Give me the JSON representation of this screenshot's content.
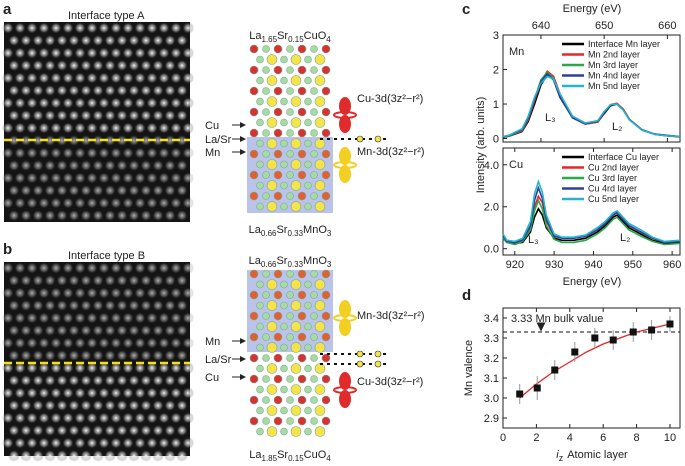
{
  "panels": [
    {
      "label": "a",
      "title": "Interface type A",
      "top_formula": [
        "La",
        "1.65",
        "Sr",
        "0.15",
        "CuO",
        "4"
      ],
      "bottom_formula": [
        "La",
        "0.66",
        "Sr",
        "0.33",
        "MnO",
        "3"
      ],
      "layer_labels": [
        "Cu",
        "La/Sr",
        "Mn"
      ],
      "orbitals": [
        "Cu-3d(3z²−r²)",
        "Mn-3d(3z²−r²)"
      ]
    },
    {
      "label": "b",
      "title": "Interface type B",
      "top_formula": [
        "La",
        "0.66",
        "Sr",
        "0.33",
        "MnO",
        "3"
      ],
      "bottom_formula": [
        "La",
        "1.85",
        "Sr",
        "0.15",
        "CuO",
        "4"
      ],
      "layer_labels": [
        "Mn",
        "La/Sr",
        "Cu"
      ],
      "orbitals": [
        "Mn-3d(3z²−r²)",
        "Cu-3d(3z²−r²)"
      ]
    }
  ],
  "chart_data": [
    {
      "type": "line",
      "panel_label": "c",
      "label": "Mn",
      "x_label": "Energy (eV)",
      "x_axis_position": "top",
      "y_label": "Intensity (arb. units)",
      "x": [
        634,
        635,
        637,
        638,
        639,
        640,
        641,
        642,
        643,
        645,
        647,
        649,
        650,
        651,
        652,
        653,
        654,
        656,
        658,
        660,
        662
      ],
      "series": [
        {
          "name": "Interface Mn layer",
          "color": "#000000",
          "values": [
            0.04,
            0.07,
            0.2,
            0.5,
            1.0,
            1.55,
            1.85,
            1.7,
            1.2,
            0.6,
            0.42,
            0.48,
            0.72,
            0.95,
            1.0,
            0.85,
            0.55,
            0.25,
            0.12,
            0.08,
            0.05
          ]
        },
        {
          "name": "Mn 2nd layer",
          "color": "#e8262a",
          "values": [
            0.05,
            0.08,
            0.22,
            0.55,
            1.1,
            1.65,
            1.95,
            1.8,
            1.3,
            0.62,
            0.42,
            0.48,
            0.75,
            0.98,
            1.02,
            0.86,
            0.56,
            0.25,
            0.12,
            0.08,
            0.06
          ]
        },
        {
          "name": "Mn 3rd layer",
          "color": "#2aa84a",
          "values": [
            0.05,
            0.08,
            0.24,
            0.58,
            1.15,
            1.7,
            1.92,
            1.75,
            1.25,
            0.6,
            0.43,
            0.5,
            0.76,
            0.98,
            1.0,
            0.84,
            0.55,
            0.25,
            0.13,
            0.09,
            0.06
          ]
        },
        {
          "name": "Mn 4nd layer",
          "color": "#2e3f9e",
          "values": [
            0.05,
            0.09,
            0.25,
            0.6,
            1.15,
            1.65,
            1.88,
            1.7,
            1.22,
            0.6,
            0.43,
            0.5,
            0.75,
            0.97,
            1.0,
            0.84,
            0.55,
            0.25,
            0.13,
            0.09,
            0.06
          ]
        },
        {
          "name": "Mn 5nd layer",
          "color": "#22b5cc",
          "values": [
            0.06,
            0.1,
            0.28,
            0.65,
            1.2,
            1.6,
            1.8,
            1.72,
            1.3,
            0.65,
            0.45,
            0.52,
            0.78,
            0.98,
            1.0,
            0.83,
            0.54,
            0.24,
            0.12,
            0.08,
            0.06
          ]
        }
      ],
      "annotations": [
        "L₃",
        "L₂"
      ],
      "xlim": [
        634,
        662
      ],
      "ylim": [
        -0.1,
        3.0
      ],
      "xticks": [
        640,
        650,
        660
      ],
      "yticks": [
        0,
        1,
        2,
        3
      ]
    },
    {
      "type": "line",
      "label": "Cu",
      "x_label": "Energy (eV)",
      "x_axis_position": "bottom",
      "x": [
        917,
        918,
        920,
        922,
        924,
        925,
        926,
        927,
        928,
        930,
        932,
        935,
        938,
        941,
        943,
        945,
        946,
        947,
        949,
        952,
        955,
        958,
        962
      ],
      "series": [
        {
          "name": "Interface Cu layer",
          "color": "#000000",
          "values": [
            0.5,
            0.3,
            0.25,
            0.3,
            0.8,
            1.5,
            1.9,
            1.6,
            1.0,
            0.5,
            0.4,
            0.4,
            0.5,
            0.8,
            1.1,
            1.5,
            1.6,
            1.4,
            1.0,
            0.7,
            0.4,
            0.25,
            0.3
          ]
        },
        {
          "name": "Cu 2nd layer",
          "color": "#e8262a",
          "values": [
            0.6,
            0.35,
            0.3,
            0.4,
            1.0,
            2.0,
            2.5,
            2.2,
            1.3,
            0.6,
            0.5,
            0.5,
            0.6,
            0.9,
            1.2,
            1.6,
            1.7,
            1.5,
            1.1,
            0.8,
            0.5,
            0.3,
            0.35
          ]
        },
        {
          "name": "Cu 3rd layer",
          "color": "#2aa84a",
          "values": [
            0.5,
            0.3,
            0.2,
            0.35,
            0.9,
            1.8,
            2.3,
            1.9,
            1.1,
            0.45,
            0.3,
            0.3,
            0.4,
            0.7,
            1.0,
            1.4,
            1.5,
            1.3,
            0.9,
            0.6,
            0.35,
            0.2,
            0.25
          ]
        },
        {
          "name": "Cu 4rd layer",
          "color": "#2e3f9e",
          "values": [
            0.6,
            0.35,
            0.3,
            0.4,
            1.1,
            2.3,
            2.9,
            2.4,
            1.4,
            0.6,
            0.5,
            0.5,
            0.6,
            0.9,
            1.2,
            1.6,
            1.75,
            1.5,
            1.1,
            0.8,
            0.5,
            0.3,
            0.35
          ]
        },
        {
          "name": "Cu 5nd layer",
          "color": "#22b5cc",
          "values": [
            0.7,
            0.4,
            0.35,
            0.5,
            1.3,
            2.6,
            3.2,
            2.7,
            1.6,
            0.7,
            0.55,
            0.55,
            0.65,
            1.0,
            1.3,
            1.7,
            1.8,
            1.6,
            1.2,
            0.9,
            0.55,
            0.35,
            0.4
          ]
        }
      ],
      "annotations": [
        "L₃",
        "L₂"
      ],
      "xlim": [
        917,
        962
      ],
      "ylim": [
        -0.3,
        4.8
      ],
      "xticks": [
        920,
        930,
        940,
        950,
        960
      ],
      "yticks": [
        {
          "value": 0,
          "label": "0.0"
        },
        {
          "value": 2,
          "label": "2.0"
        },
        {
          "value": 4,
          "label": "4.0"
        }
      ]
    },
    {
      "type": "scatter",
      "panel_label": "d",
      "y_label": "Mn valence",
      "x_label_var": "i",
      "x_label_sub": "z",
      "x_label": "Atomic layer",
      "x": [
        1,
        2.05,
        3.1,
        4.3,
        5.5,
        6.6,
        7.8,
        8.9,
        10
      ],
      "values": [
        3.02,
        3.05,
        3.14,
        3.23,
        3.3,
        3.29,
        3.33,
        3.34,
        3.37
      ],
      "errors": [
        0.05,
        0.06,
        0.05,
        0.05,
        0.05,
        0.05,
        0.05,
        0.05,
        0.04
      ],
      "color": "#111111",
      "fit": {
        "color": "#e0262a",
        "x": [
          1,
          2,
          3,
          4,
          5,
          6,
          7,
          8,
          9,
          10
        ],
        "values": [
          3.0,
          3.07,
          3.13,
          3.18,
          3.23,
          3.27,
          3.3,
          3.33,
          3.35,
          3.37
        ]
      },
      "reference_line": {
        "value": 3.33,
        "label": "3.33 Mn bulk value"
      },
      "xlim": [
        0,
        10.6
      ],
      "ylim": [
        2.85,
        3.45
      ],
      "xticks": [
        0,
        2,
        4,
        6,
        8,
        10
      ],
      "yticks": [
        2.9,
        {
          "value": 3.0,
          "label": "3.0"
        },
        3.1,
        3.2,
        3.3,
        3.4
      ]
    }
  ]
}
